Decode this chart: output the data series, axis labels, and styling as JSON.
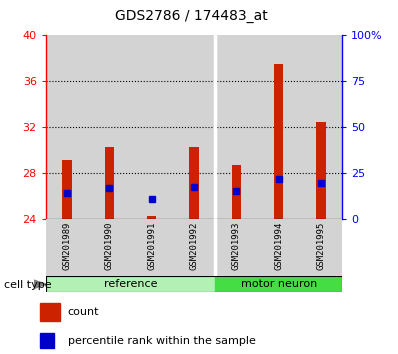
{
  "title": "GDS2786 / 174483_at",
  "samples": [
    "GSM201989",
    "GSM201990",
    "GSM201991",
    "GSM201992",
    "GSM201993",
    "GSM201994",
    "GSM201995"
  ],
  "count_values": [
    29.2,
    30.3,
    24.3,
    30.3,
    28.7,
    37.5,
    32.5
  ],
  "percentile_values": [
    26.3,
    26.7,
    25.8,
    26.8,
    26.5,
    27.5,
    27.2
  ],
  "baseline": 24.0,
  "ylim_left": [
    24,
    40
  ],
  "yticks_left": [
    24,
    28,
    32,
    36,
    40
  ],
  "yticks_right": [
    0,
    25,
    50,
    75,
    100
  ],
  "ytick_labels_right": [
    "0",
    "25",
    "50",
    "75",
    "100%"
  ],
  "bar_color": "#cc2200",
  "percentile_color": "#0000cc",
  "bg_color": "#d3d3d3",
  "ref_color": "#b3f0b3",
  "motor_color": "#44dd44",
  "group_sep": 3.5,
  "ref_label": "reference",
  "motor_label": "motor neuron",
  "cell_type_label": "cell type",
  "legend_count_label": "count",
  "legend_pct_label": "percentile rank within the sample",
  "grid_lines": [
    28,
    32,
    36
  ],
  "bar_width": 0.22
}
